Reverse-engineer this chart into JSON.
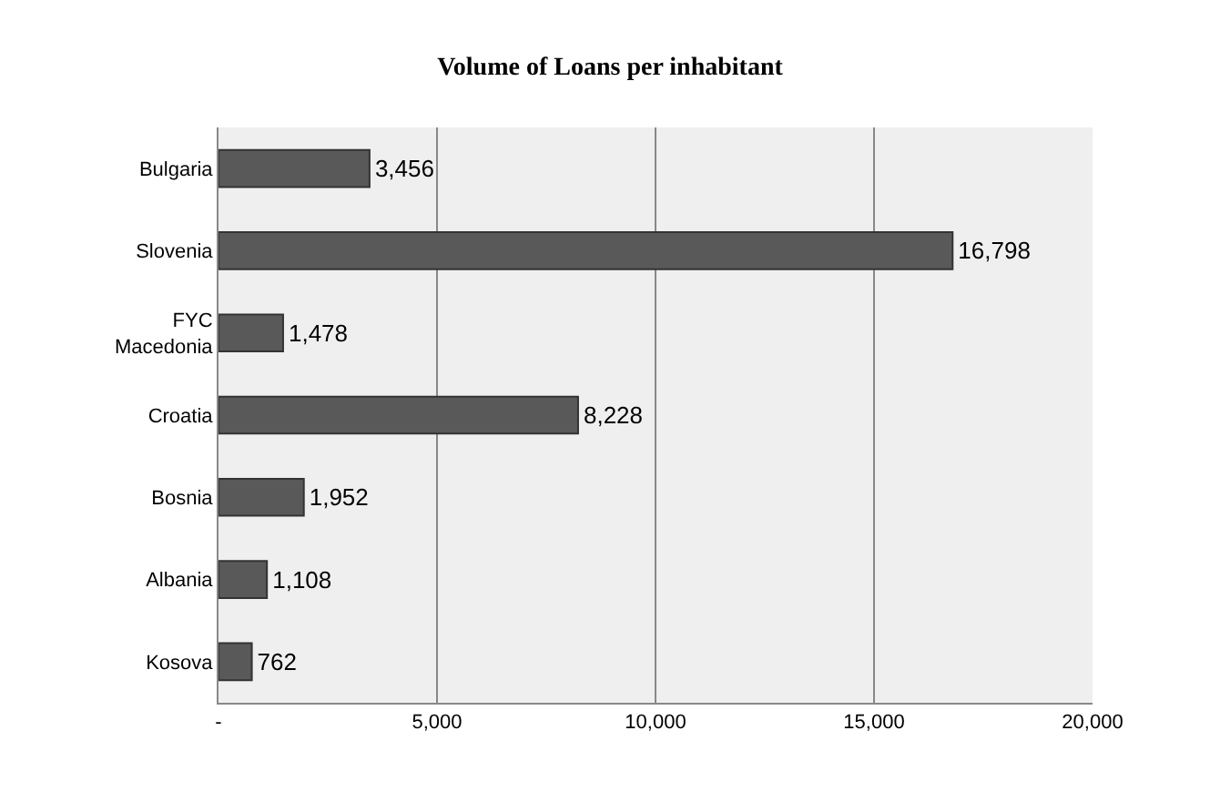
{
  "chart_data": {
    "type": "bar",
    "orientation": "horizontal",
    "title": "Volume of Loans per inhabitant",
    "categories": [
      "Bulgaria",
      "Slovenia",
      "FYC Macedonia",
      "Croatia",
      "Bosnia",
      "Albania",
      "Kosova"
    ],
    "values": [
      3456,
      16798,
      1478,
      8228,
      1952,
      1108,
      762
    ],
    "color": "#595959",
    "value_labels": [
      "3,456",
      "16,798",
      "1,478",
      "8,228",
      "1,952",
      "1,108",
      "762"
    ],
    "xlim": [
      0,
      20000
    ],
    "xticks": [
      {
        "value": 0,
        "label": "-"
      },
      {
        "value": 5000,
        "label": "5,000"
      },
      {
        "value": 10000,
        "label": "10,000"
      },
      {
        "value": 15000,
        "label": "15,000"
      },
      {
        "value": 20000,
        "label": "20,000"
      }
    ],
    "grid": "x"
  }
}
